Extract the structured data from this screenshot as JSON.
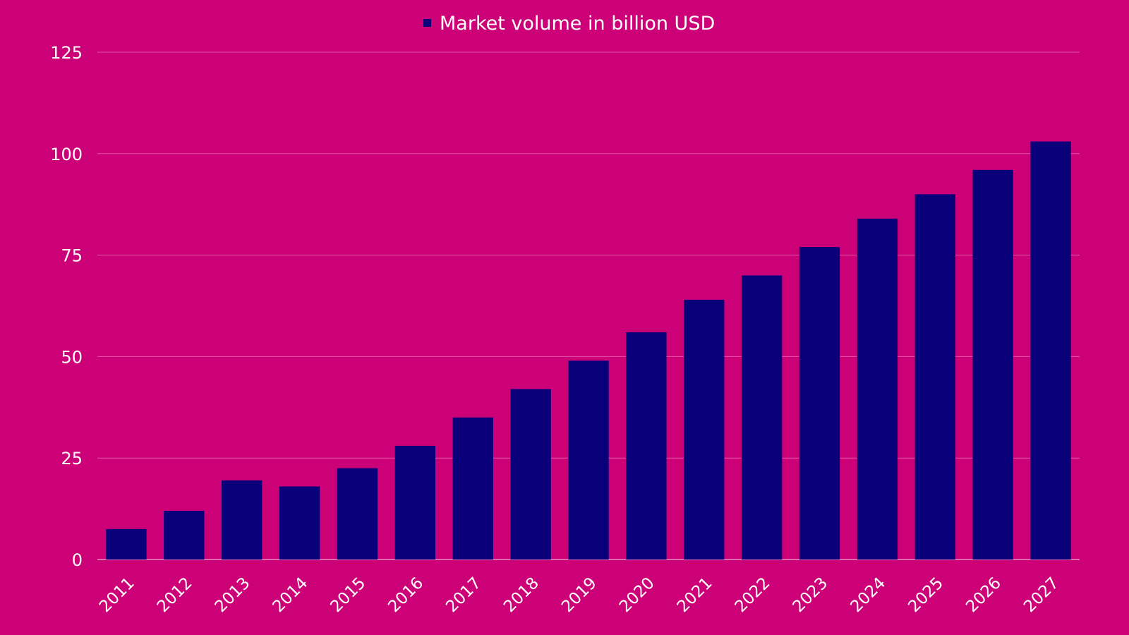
{
  "chart_data": {
    "type": "bar",
    "categories": [
      "2011",
      "2012",
      "2013",
      "2014",
      "2015",
      "2016",
      "2017",
      "2018",
      "2019",
      "2020",
      "2021",
      "2022",
      "2023",
      "2024",
      "2025",
      "2026",
      "2027"
    ],
    "series": [
      {
        "name": "Market volume in billion USD",
        "values": [
          7.5,
          12,
          19.5,
          18,
          22.5,
          28,
          35,
          42,
          49,
          56,
          64,
          70,
          77,
          84,
          90,
          96,
          103
        ]
      }
    ],
    "title": "",
    "xlabel": "",
    "ylabel": "",
    "ylim": [
      0,
      125
    ],
    "yticks": [
      "0",
      "25",
      "50",
      "75",
      "100",
      "125"
    ],
    "grid": true,
    "legend_position": "top-center",
    "colors": {
      "background": "#cc0077",
      "bar": "#0a007a",
      "grid": "#e056a8",
      "text": "#ffffff"
    }
  }
}
